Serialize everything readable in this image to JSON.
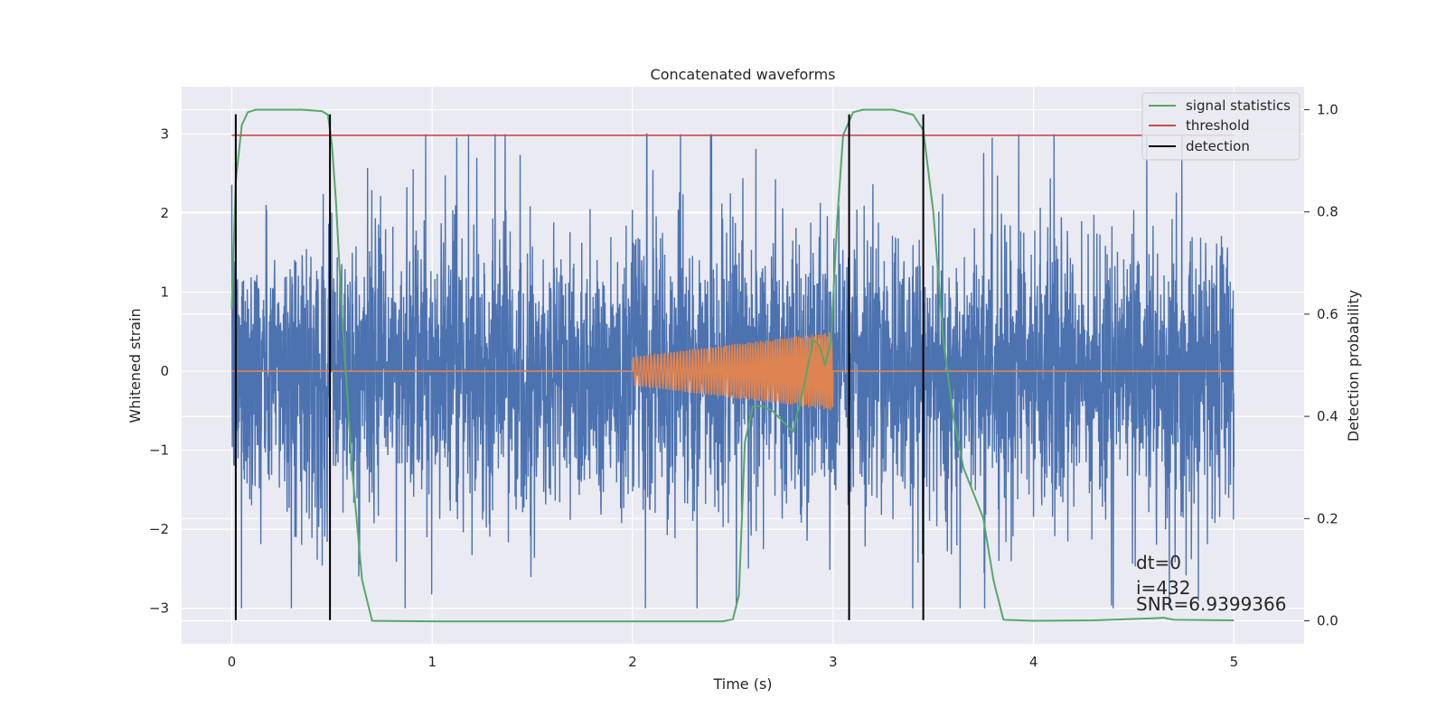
{
  "chart_data": {
    "type": "line",
    "title": "Concatenated waveforms",
    "xlabel": "Time (s)",
    "ylabel": "Whitened strain",
    "y2label": "Detection probability",
    "xlim": [
      -0.25,
      5.35
    ],
    "ylim": [
      -3.45,
      3.6
    ],
    "y2lim": [
      -0.045,
      1.045
    ],
    "xticks": [
      "0",
      "1",
      "2",
      "3",
      "4",
      "5"
    ],
    "yticks": [
      "3",
      "2",
      "1",
      "0",
      "−1",
      "−2",
      "−3"
    ],
    "y2ticks": [
      "1.0",
      "0.8",
      "0.6",
      "0.4",
      "0.2",
      "0.0"
    ],
    "grid": true,
    "legend_position": "top-right",
    "series": [
      {
        "name": "",
        "kind": "noise-strain",
        "color": "#4c72b0",
        "x_range": [
          0,
          5
        ],
        "typical_amplitude": 1.3,
        "max_amplitude": 3.0
      },
      {
        "name": "",
        "kind": "injected-chirp",
        "color": "#dd8452",
        "x_range": [
          0,
          5
        ],
        "chirp_start": 2.0,
        "chirp_end": 3.0,
        "amplitude_start": 0.18,
        "amplitude_end": 0.5
      },
      {
        "name": "signal statistics",
        "axis": "right",
        "color": "#55a868",
        "x": [
          0.0,
          0.02,
          0.05,
          0.08,
          0.12,
          0.2,
          0.35,
          0.45,
          0.48,
          0.5,
          0.52,
          0.55,
          0.6,
          0.65,
          0.7,
          1.0,
          2.0,
          2.45,
          2.5,
          2.53,
          2.56,
          2.6,
          2.65,
          2.7,
          2.75,
          2.8,
          2.85,
          2.9,
          2.93,
          2.96,
          2.99,
          3.02,
          3.05,
          3.1,
          3.15,
          3.3,
          3.4,
          3.45,
          3.5,
          3.55,
          3.6,
          3.65,
          3.7,
          3.75,
          3.8,
          3.85,
          4.0,
          4.3,
          4.6,
          4.65,
          4.7,
          5.0
        ],
        "y": [
          0.61,
          0.86,
          0.97,
          0.995,
          1.0,
          1.0,
          1.0,
          0.997,
          0.99,
          0.93,
          0.82,
          0.6,
          0.3,
          0.08,
          0.0,
          -0.001,
          -0.001,
          -0.001,
          0.003,
          0.05,
          0.35,
          0.42,
          0.42,
          0.41,
          0.39,
          0.37,
          0.45,
          0.55,
          0.54,
          0.5,
          0.55,
          0.78,
          0.95,
          0.995,
          1.0,
          1.0,
          0.99,
          0.96,
          0.8,
          0.55,
          0.4,
          0.3,
          0.25,
          0.2,
          0.08,
          0.002,
          0.0,
          0.001,
          0.005,
          0.006,
          0.002,
          0.001
        ]
      },
      {
        "name": "threshold",
        "axis": "right",
        "color": "#c44e52",
        "x": [
          0,
          5
        ],
        "y": [
          0.95,
          0.95
        ]
      },
      {
        "name": "detection",
        "color": "#000000",
        "kind": "vertical-lines",
        "x": [
          0.02,
          0.49,
          3.08,
          3.45
        ],
        "y_range": [
          -3.15,
          3.25
        ]
      }
    ],
    "annotations": [
      "dt=0",
      "i=432",
      "SNR=6.9399366"
    ]
  }
}
